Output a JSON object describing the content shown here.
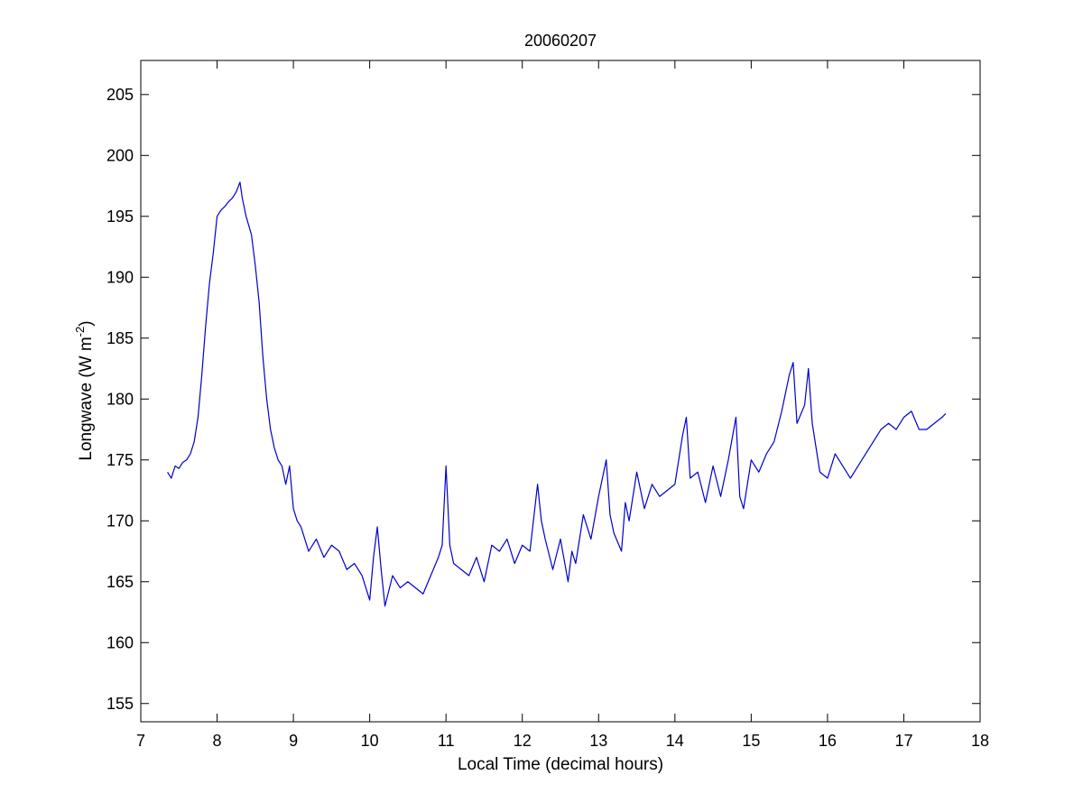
{
  "chart_data": {
    "type": "line",
    "title": "20060207",
    "xlabel": "Local Time (decimal hours)",
    "ylabel_main": "Longwave (W m",
    "ylabel_sup": "-2",
    "ylabel_close": ")",
    "xlim": [
      7,
      18
    ],
    "ylim": [
      153.5,
      207.8
    ],
    "xticks": [
      7,
      8,
      9,
      10,
      11,
      12,
      13,
      14,
      15,
      16,
      17,
      18
    ],
    "yticks": [
      155,
      160,
      165,
      170,
      175,
      180,
      185,
      190,
      195,
      200,
      205
    ],
    "grid": false,
    "legend": "none",
    "series": [
      {
        "color": "#0000cc",
        "x": [
          7.35,
          7.4,
          7.45,
          7.5,
          7.55,
          7.6,
          7.65,
          7.7,
          7.75,
          7.8,
          7.85,
          7.9,
          7.95,
          8.0,
          8.05,
          8.1,
          8.15,
          8.2,
          8.25,
          8.3,
          8.33,
          8.38,
          8.45,
          8.5,
          8.55,
          8.6,
          8.65,
          8.7,
          8.75,
          8.8,
          8.85,
          8.9,
          8.95,
          9.0,
          9.05,
          9.1,
          9.15,
          9.2,
          9.3,
          9.4,
          9.5,
          9.6,
          9.7,
          9.8,
          9.9,
          10.0,
          10.05,
          10.1,
          10.15,
          10.2,
          10.3,
          10.4,
          10.5,
          10.6,
          10.7,
          10.8,
          10.9,
          10.95,
          11.0,
          11.05,
          11.1,
          11.2,
          11.3,
          11.4,
          11.5,
          11.6,
          11.7,
          11.8,
          11.9,
          12.0,
          12.1,
          12.2,
          12.25,
          12.3,
          12.4,
          12.5,
          12.6,
          12.65,
          12.7,
          12.8,
          12.9,
          13.0,
          13.1,
          13.15,
          13.2,
          13.3,
          13.35,
          13.4,
          13.5,
          13.6,
          13.7,
          13.8,
          13.9,
          14.0,
          14.1,
          14.15,
          14.2,
          14.3,
          14.4,
          14.5,
          14.6,
          14.7,
          14.8,
          14.85,
          14.9,
          15.0,
          15.1,
          15.2,
          15.3,
          15.4,
          15.5,
          15.55,
          15.6,
          15.7,
          15.75,
          15.8,
          15.9,
          16.0,
          16.1,
          16.2,
          16.3,
          16.4,
          16.5,
          16.6,
          16.7,
          16.8,
          16.9,
          17.0,
          17.1,
          17.2,
          17.3,
          17.4,
          17.5,
          17.55
        ],
        "y": [
          174.0,
          173.5,
          174.5,
          174.3,
          174.8,
          175.0,
          175.5,
          176.5,
          178.5,
          182.0,
          186.0,
          189.5,
          192.0,
          195.0,
          195.5,
          195.8,
          196.2,
          196.5,
          197.0,
          197.8,
          196.5,
          195.0,
          193.5,
          191.0,
          188.0,
          183.5,
          180.0,
          177.5,
          176.0,
          175.0,
          174.5,
          173.0,
          174.5,
          171.0,
          170.0,
          169.5,
          168.5,
          167.5,
          168.5,
          167.0,
          168.0,
          167.5,
          166.0,
          166.5,
          165.5,
          163.5,
          167.0,
          169.5,
          166.0,
          163.0,
          165.5,
          164.5,
          165.0,
          164.5,
          164.0,
          165.5,
          167.0,
          168.0,
          174.5,
          168.0,
          166.5,
          166.0,
          165.5,
          167.0,
          165.0,
          168.0,
          167.5,
          168.5,
          166.5,
          168.0,
          167.5,
          173.0,
          170.0,
          168.5,
          166.0,
          168.5,
          165.0,
          167.5,
          166.5,
          170.5,
          168.5,
          172.0,
          175.0,
          170.5,
          169.0,
          167.5,
          171.5,
          170.0,
          174.0,
          171.0,
          173.0,
          172.0,
          172.5,
          173.0,
          177.0,
          178.5,
          173.5,
          174.0,
          171.5,
          174.5,
          172.0,
          175.0,
          178.5,
          172.0,
          171.0,
          175.0,
          174.0,
          175.5,
          176.5,
          179.0,
          182.0,
          183.0,
          178.0,
          179.5,
          182.5,
          178.0,
          174.0,
          173.5,
          175.5,
          174.5,
          173.5,
          174.5,
          175.5,
          176.5,
          177.5,
          178.0,
          177.5,
          178.5,
          179.0,
          177.5,
          177.5,
          178.0,
          178.5,
          178.8
        ]
      }
    ]
  }
}
